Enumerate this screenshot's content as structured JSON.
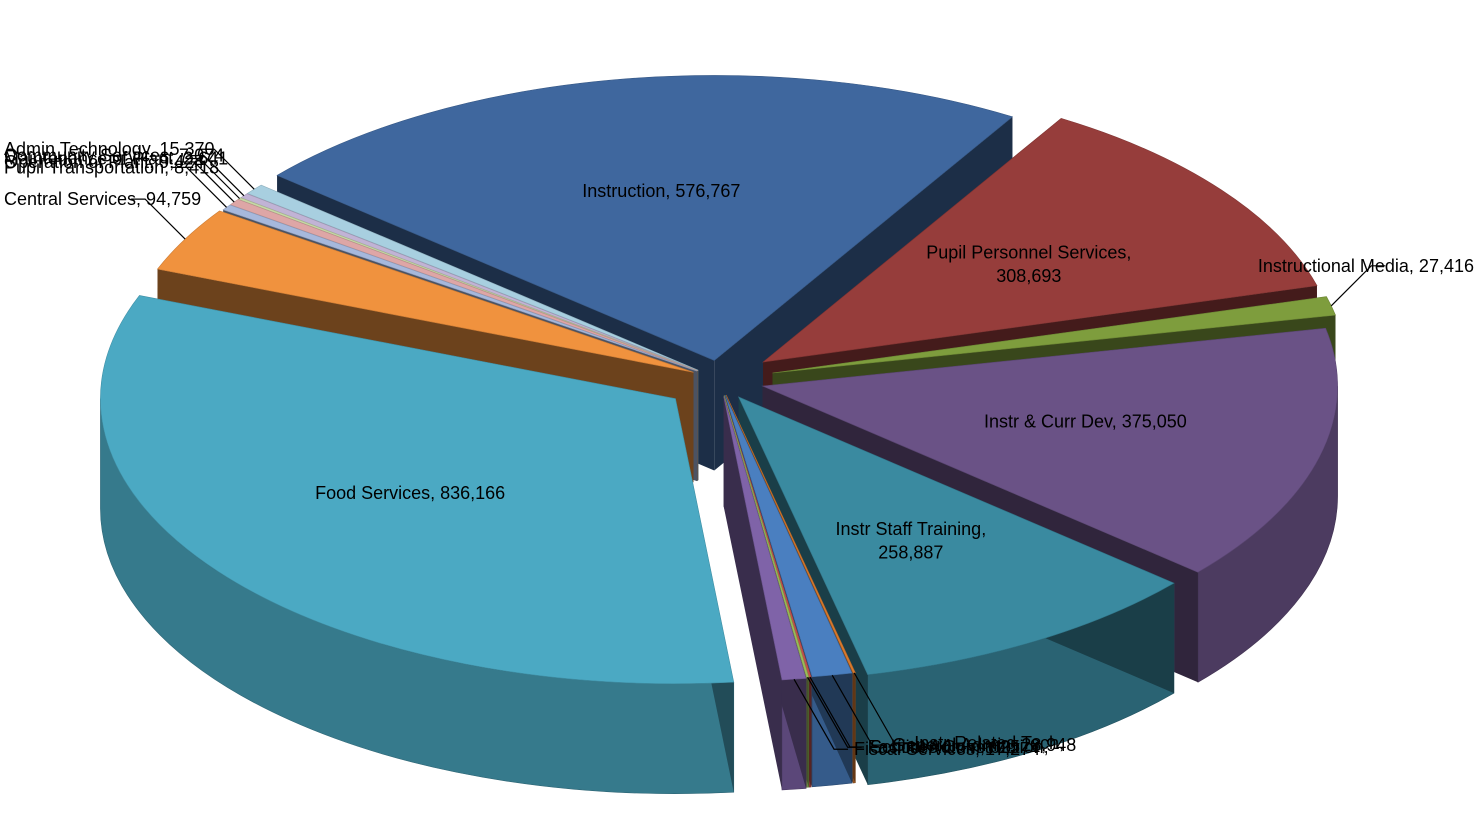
{
  "chart_data": {
    "type": "pie",
    "title": "",
    "legend": "none",
    "categories": [
      "Instruction",
      "Pupil Personnel Services",
      "Instructional Media",
      "Instr & Curr Dev",
      "Instr Staff Training",
      "Instr Related Tech",
      "General Admin",
      "School Admin",
      "Facilities Construction",
      "Fiscal Services",
      "Food Services",
      "Central Services",
      "Pupil Transportation",
      "Operation of Plant",
      "Maintenance of Plant",
      "Community Services",
      "Admin Technology"
    ],
    "values": [
      576767,
      308693,
      27416,
      375050,
      258887,
      0,
      28948,
      625,
      0,
      17274,
      836166,
      94759,
      8418,
      9424,
      2641,
      7074,
      15370
    ],
    "value_labels": [
      "576,767",
      "308,693",
      "27,416",
      "375,050",
      "258,887",
      "-",
      "28,948",
      "625",
      "-",
      "17,274",
      "836,166",
      "94,759",
      "8,418",
      "9,424",
      "2,641",
      "7,074",
      "15,370"
    ],
    "colors": [
      "#3f679e",
      "#963d3b",
      "#7e9d3d",
      "#6a5286",
      "#3a8aa0",
      "#d97a2e",
      "#4a7fc0",
      "#c0504d",
      "#9bbb59",
      "#7f63a8",
      "#4ba9c3",
      "#f0923e",
      "#a6b8dc",
      "#dea6a6",
      "#c6d8a6",
      "#c1b3d5",
      "#a8cfe0"
    ]
  }
}
